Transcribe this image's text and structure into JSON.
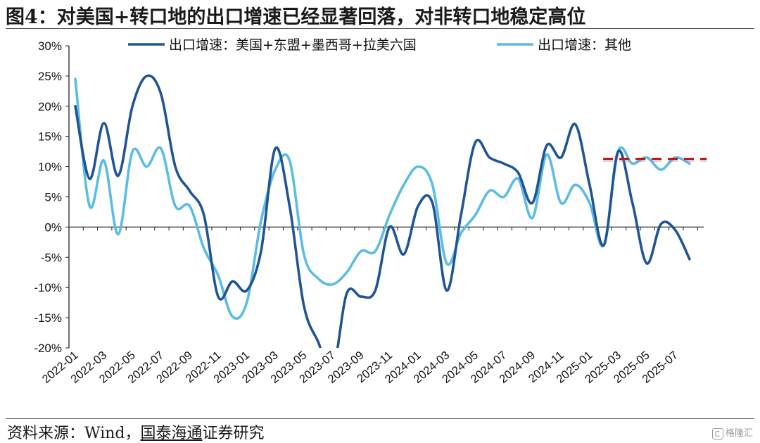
{
  "title": "图4：对美国+转口地的出口增速已经显著回落，对非转口地稳定高位",
  "source": {
    "prefix": "资料来源：Wind，",
    "underlined": "国泰海通",
    "suffix": "证券研究"
  },
  "watermark": {
    "icon": "gelonghui-logo-icon",
    "text": "格隆汇"
  },
  "chart_data": {
    "type": "line",
    "title": "",
    "xlabel": "",
    "ylabel": "",
    "ylim": [
      -20,
      30
    ],
    "y_ticks": [
      30,
      25,
      20,
      15,
      10,
      5,
      0,
      -5,
      -10,
      -15,
      -20
    ],
    "y_tick_labels": [
      "30%",
      "25%",
      "20%",
      "15%",
      "10%",
      "5%",
      "0%",
      "-5%",
      "-10%",
      "-15%",
      "-20%"
    ],
    "x": [
      "2022-01",
      "2022-02",
      "2022-03",
      "2022-04",
      "2022-05",
      "2022-06",
      "2022-07",
      "2022-08",
      "2022-09",
      "2022-10",
      "2022-11",
      "2022-12",
      "2023-01",
      "2023-02",
      "2023-03",
      "2023-04",
      "2023-05",
      "2023-06",
      "2023-07",
      "2023-08",
      "2023-09",
      "2023-10",
      "2023-11",
      "2023-12",
      "2024-01",
      "2024-02",
      "2024-03",
      "2024-04",
      "2024-05",
      "2024-06",
      "2024-07",
      "2024-08",
      "2024-09",
      "2024-10",
      "2024-11",
      "2024-12",
      "2025-01",
      "2025-02",
      "2025-03",
      "2025-04",
      "2025-05",
      "2025-06",
      "2025-07",
      "2025-08"
    ],
    "x_tick_labels": [
      "2022-01",
      "2022-03",
      "2022-05",
      "2022-07",
      "2022-09",
      "2022-11",
      "2023-01",
      "2023-03",
      "2023-05",
      "2023-07",
      "2023-09",
      "2023-11",
      "2024-01",
      "2024-03",
      "2024-05",
      "2024-07",
      "2024-09",
      "2024-11",
      "2025-01",
      "2025-03",
      "2025-05",
      "2025-07"
    ],
    "series": [
      {
        "name": "出口增速：美国+东盟+墨西哥+拉美六国",
        "color": "#1f5596",
        "values": [
          20,
          8,
          17.2,
          8.5,
          20,
          25,
          22,
          10,
          6,
          2,
          -11.5,
          -9,
          -10.5,
          -4,
          13,
          3.5,
          -13,
          -19,
          -24,
          -11,
          -11.5,
          -10.5,
          0,
          -4.5,
          3.5,
          4,
          -10.5,
          2,
          14,
          11.5,
          10.5,
          9,
          4,
          13.5,
          11.5,
          17,
          7,
          -3,
          12.5,
          4,
          -6,
          0.5,
          -0.5,
          -5.3
        ]
      },
      {
        "name": "出口增速：其他",
        "color": "#5bbce4",
        "values": [
          24.5,
          3.5,
          11,
          -1.2,
          12.5,
          10,
          13,
          3.5,
          3.5,
          -3.5,
          -8,
          -14.8,
          -12.5,
          1,
          9.5,
          11,
          -4.5,
          -8.5,
          -9.5,
          -7.5,
          -4,
          -4,
          2,
          7,
          10,
          7,
          -6,
          -1,
          2,
          6,
          5,
          8,
          1.5,
          12,
          4,
          7,
          4,
          -3,
          12.5,
          10.5,
          11.5,
          9.5,
          11.5,
          10.5
        ]
      }
    ],
    "reference_line": {
      "color": "#c0161d",
      "value": 11.3,
      "x_start": "2025-02",
      "x_end": "2025-09"
    },
    "legend_position": "top",
    "grid": false
  }
}
